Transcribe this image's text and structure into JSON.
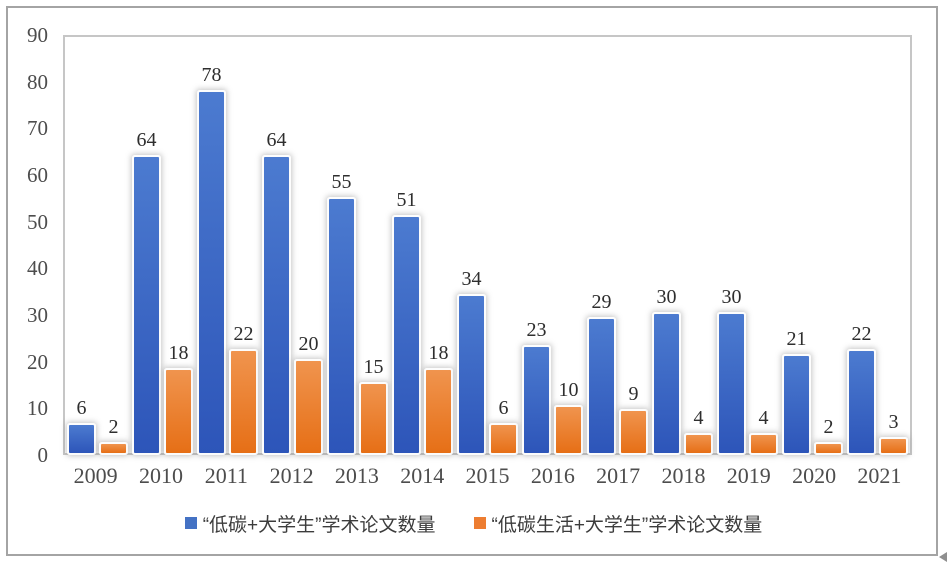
{
  "chart_data": {
    "type": "bar",
    "title": "",
    "xlabel": "",
    "ylabel": "",
    "categories": [
      "2009",
      "2010",
      "2011",
      "2012",
      "2013",
      "2014",
      "2015",
      "2016",
      "2017",
      "2018",
      "2019",
      "2020",
      "2021"
    ],
    "series": [
      {
        "name": "“低碳+大学生”学术论文数量",
        "color": "#4472C4",
        "gradient": [
          "#4C7BD0",
          "#2D55B9"
        ],
        "values": [
          6,
          64,
          78,
          64,
          55,
          51,
          34,
          23,
          29,
          30,
          30,
          21,
          22
        ]
      },
      {
        "name": "“低碳生活+大学生”学术论文数量",
        "color": "#ED7D31",
        "gradient": [
          "#F0944E",
          "#E66F16"
        ],
        "values": [
          2,
          18,
          22,
          20,
          15,
          18,
          6,
          10,
          9,
          4,
          4,
          2,
          3
        ]
      }
    ],
    "ylim": [
      0,
      90
    ],
    "yticks": [
      0,
      10,
      20,
      30,
      40,
      50,
      60,
      70,
      80,
      90
    ],
    "grid": false,
    "legend_position": "bottom",
    "data_labels": true
  }
}
